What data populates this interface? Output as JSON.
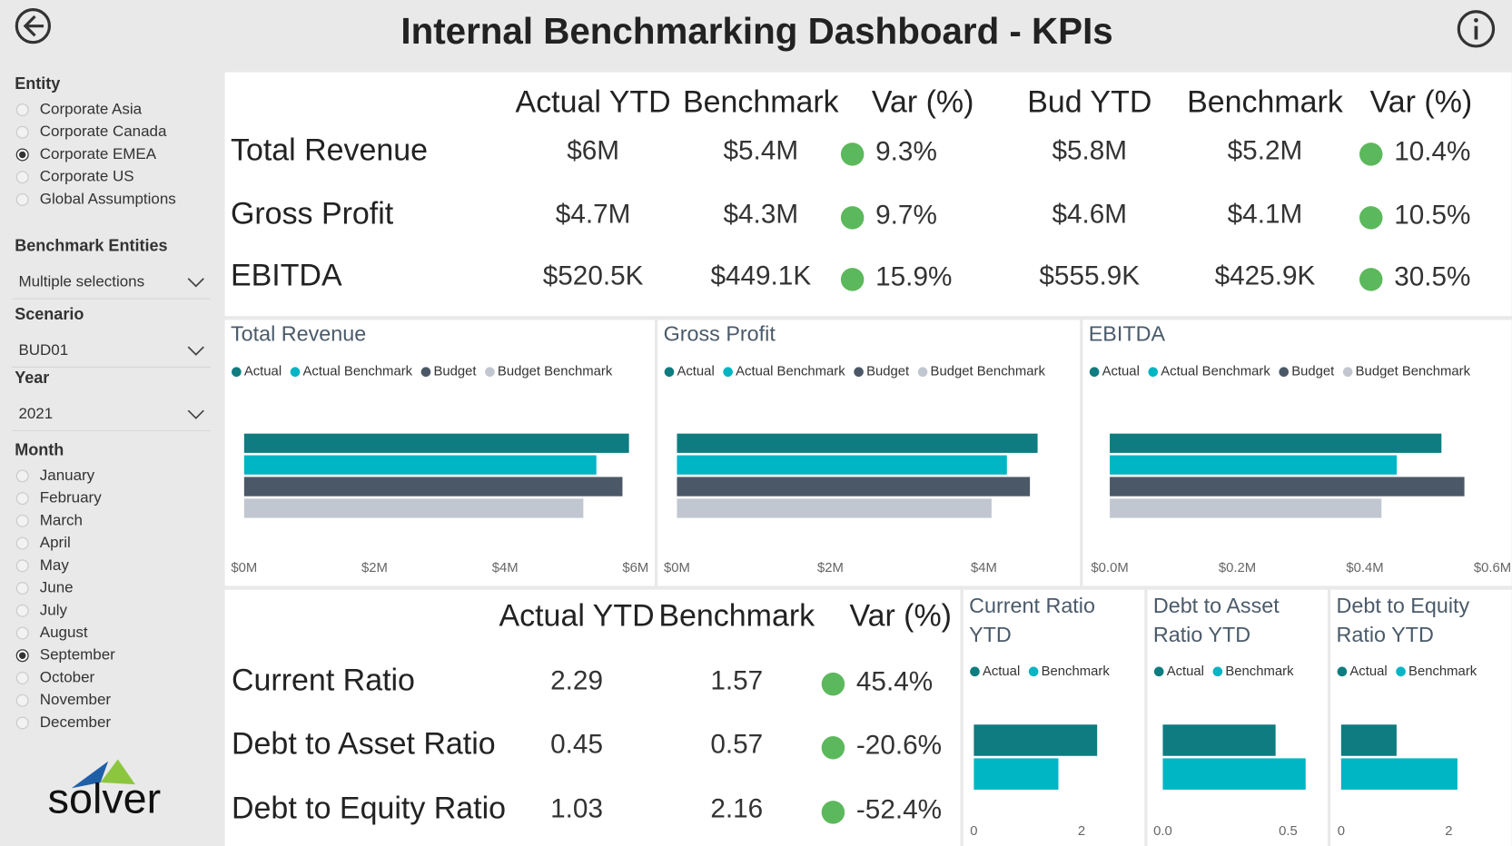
{
  "header": {
    "title": "Internal Benchmarking Dashboard - KPIs"
  },
  "filters": {
    "entity": {
      "label": "Entity",
      "options": [
        "Corporate Asia",
        "Corporate Canada",
        "Corporate EMEA",
        "Corporate US",
        "Global Assumptions"
      ],
      "selected": 2
    },
    "benchmark_entities": {
      "label": "Benchmark Entities",
      "value": "Multiple selections"
    },
    "scenario": {
      "label": "Scenario",
      "value": "BUD01"
    },
    "year": {
      "label": "Year",
      "value": "2021"
    },
    "month": {
      "label": "Month",
      "options": [
        "January",
        "February",
        "March",
        "April",
        "May",
        "June",
        "July",
        "August",
        "September",
        "October",
        "November",
        "December"
      ],
      "selected": 8
    }
  },
  "logo": {
    "text": "solver"
  },
  "kpi_table": {
    "indicator_color": "#5cb85c",
    "columns": [
      "Actual YTD",
      "Benchmark",
      "Var (%)",
      "Bud YTD",
      "Benchmark",
      "Var (%)"
    ],
    "rows": [
      {
        "label": "Total Revenue",
        "cells": [
          "$6M",
          "$5.4M",
          "9.3%",
          "$5.8M",
          "$5.2M",
          "10.4%"
        ]
      },
      {
        "label": "Gross Profit",
        "cells": [
          "$4.7M",
          "$4.3M",
          "9.7%",
          "$4.6M",
          "$4.1M",
          "10.5%"
        ]
      },
      {
        "label": "EBITDA",
        "cells": [
          "$520.5K",
          "$449.1K",
          "15.9%",
          "$555.9K",
          "$425.9K",
          "30.5%"
        ]
      }
    ]
  },
  "ratio_table": {
    "indicator_color": "#5cb85c",
    "columns": [
      "Actual YTD",
      "Benchmark",
      "Var (%)"
    ],
    "rows": [
      {
        "label": "Current Ratio",
        "cells": [
          "2.29",
          "1.57",
          "45.4%"
        ]
      },
      {
        "label": "Debt to Asset Ratio",
        "cells": [
          "0.45",
          "0.57",
          "-20.6%"
        ]
      },
      {
        "label": "Debt to Equity Ratio",
        "cells": [
          "1.03",
          "2.16",
          "-52.4%"
        ]
      }
    ]
  },
  "chart_data": [
    {
      "type": "bar",
      "orientation": "horizontal",
      "title": "Total Revenue",
      "categories": [
        null
      ],
      "series": [
        {
          "name": "Actual",
          "color": "#0e7c80",
          "values": [
            5.9
          ]
        },
        {
          "name": "Actual Benchmark",
          "color": "#00b5c4",
          "values": [
            5.4
          ]
        },
        {
          "name": "Budget",
          "color": "#4b5867",
          "values": [
            5.8
          ]
        },
        {
          "name": "Budget Benchmark",
          "color": "#c1c7d0",
          "values": [
            5.2
          ]
        }
      ],
      "xlim": [
        0,
        6
      ],
      "xticks": [
        {
          "value": 0,
          "label": "$0M"
        },
        {
          "value": 2,
          "label": "$2M"
        },
        {
          "value": 4,
          "label": "$4M"
        },
        {
          "value": 6,
          "label": "$6M"
        }
      ]
    },
    {
      "type": "bar",
      "orientation": "horizontal",
      "title": "Gross Profit",
      "categories": [
        null
      ],
      "series": [
        {
          "name": "Actual",
          "color": "#0e7c80",
          "values": [
            4.7
          ]
        },
        {
          "name": "Actual Benchmark",
          "color": "#00b5c4",
          "values": [
            4.3
          ]
        },
        {
          "name": "Budget",
          "color": "#4b5867",
          "values": [
            4.6
          ]
        },
        {
          "name": "Budget Benchmark",
          "color": "#c1c7d0",
          "values": [
            4.1
          ]
        }
      ],
      "xlim": [
        0,
        5
      ],
      "xticks": [
        {
          "value": 0,
          "label": "$0M"
        },
        {
          "value": 2,
          "label": "$2M"
        },
        {
          "value": 4,
          "label": "$4M"
        }
      ]
    },
    {
      "type": "bar",
      "orientation": "horizontal",
      "title": "EBITDA",
      "categories": [
        null
      ],
      "series": [
        {
          "name": "Actual",
          "color": "#0e7c80",
          "values": [
            0.52
          ]
        },
        {
          "name": "Actual Benchmark",
          "color": "#00b5c4",
          "values": [
            0.45
          ]
        },
        {
          "name": "Budget",
          "color": "#4b5867",
          "values": [
            0.556
          ]
        },
        {
          "name": "Budget Benchmark",
          "color": "#c1c7d0",
          "values": [
            0.426
          ]
        }
      ],
      "xlim": [
        0,
        0.6
      ],
      "xticks": [
        {
          "value": 0,
          "label": "$0.0M"
        },
        {
          "value": 0.2,
          "label": "$0.2M"
        },
        {
          "value": 0.4,
          "label": "$0.4M"
        },
        {
          "value": 0.6,
          "label": "$0.6M"
        }
      ]
    },
    {
      "type": "bar",
      "orientation": "horizontal",
      "title": "Current Ratio YTD",
      "categories": [
        null
      ],
      "series": [
        {
          "name": "Actual",
          "color": "#0e7c80",
          "values": [
            2.29
          ]
        },
        {
          "name": "Benchmark",
          "color": "#00b5c4",
          "values": [
            1.57
          ]
        }
      ],
      "xlim": [
        0,
        2.9
      ],
      "xticks": [
        0,
        2
      ]
    },
    {
      "type": "bar",
      "orientation": "horizontal",
      "title": "Debt to Asset Ratio YTD",
      "categories": [
        null
      ],
      "series": [
        {
          "name": "Actual",
          "color": "#0e7c80",
          "values": [
            0.45
          ]
        },
        {
          "name": "Benchmark",
          "color": "#00b5c4",
          "values": [
            0.57
          ]
        }
      ],
      "xlim": [
        0,
        0.6
      ],
      "xticks": [
        {
          "value": 0,
          "label": "0.0"
        },
        0.5
      ]
    },
    {
      "type": "bar",
      "orientation": "horizontal",
      "title": "Debt to Equity Ratio YTD",
      "categories": [
        null
      ],
      "series": [
        {
          "name": "Actual",
          "color": "#0e7c80",
          "values": [
            1.03
          ]
        },
        {
          "name": "Benchmark",
          "color": "#00b5c4",
          "values": [
            2.16
          ]
        }
      ],
      "xlim": [
        0,
        2.9
      ],
      "xticks": [
        0,
        2
      ]
    }
  ]
}
